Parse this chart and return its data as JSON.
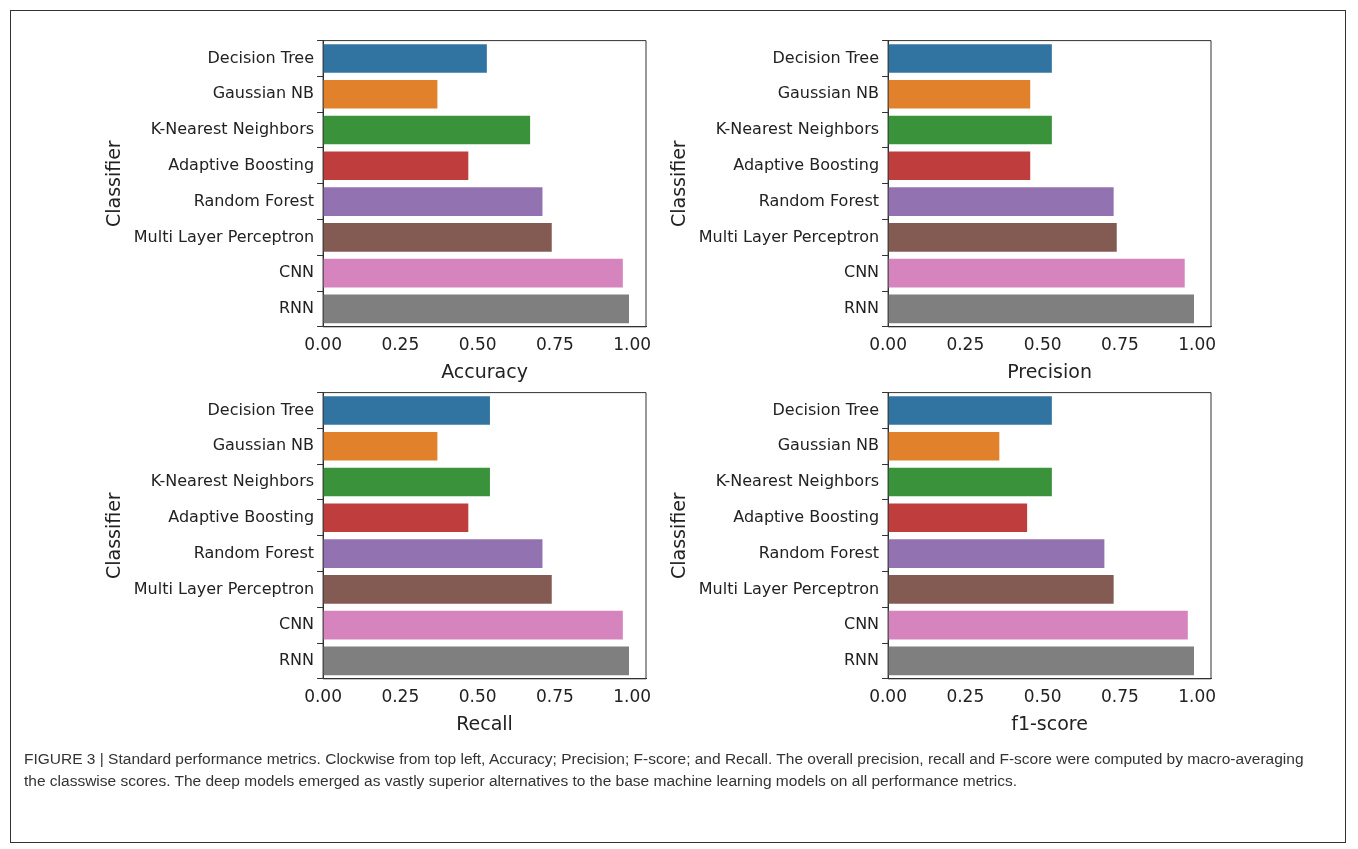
{
  "chart_data": [
    {
      "type": "bar",
      "orientation": "horizontal",
      "xlabel": "Accuracy",
      "ylabel": "Classifier",
      "categories": [
        "Decision Tree",
        "Gaussian NB",
        "K-Nearest Neighbors",
        "Adaptive Boosting",
        "Random Forest",
        "Multi Layer Perceptron",
        "CNN",
        "RNN"
      ],
      "values": [
        0.53,
        0.37,
        0.67,
        0.47,
        0.71,
        0.74,
        0.97,
        0.99
      ],
      "colors": [
        "#3274a1",
        "#e1812c",
        "#3a923a",
        "#c03d3e",
        "#9372b2",
        "#845b53",
        "#d684bd",
        "#7f7f7f"
      ],
      "xlim": [
        0,
        1.045
      ],
      "xticks": [
        {
          "value": 0,
          "label": "0.00"
        },
        {
          "value": 0.25,
          "label": "0.25"
        },
        {
          "value": 0.5,
          "label": "0.50"
        },
        {
          "value": 0.75,
          "label": "0.75"
        },
        {
          "value": 1,
          "label": "1.00"
        }
      ],
      "grid": false,
      "annotations": [
        "FIGURE 3 | Standard performance metrics. Clockwise from top left, Accuracy; Precision; F-score; and Recall. The overall precision, recall and F-score were computed by macro-averaging the classwise scores. The deep models emerged as vastly superior alternatives to the base machine learning models on all performance metrics."
      ]
    },
    {
      "type": "bar",
      "orientation": "horizontal",
      "xlabel": "Precision",
      "ylabel": "Classifier",
      "categories": [
        "Decision Tree",
        "Gaussian NB",
        "K-Nearest Neighbors",
        "Adaptive Boosting",
        "Random Forest",
        "Multi Layer Perceptron",
        "CNN",
        "RNN"
      ],
      "values": [
        0.53,
        0.46,
        0.53,
        0.46,
        0.73,
        0.74,
        0.96,
        0.99
      ],
      "colors": [
        "#3274a1",
        "#e1812c",
        "#3a923a",
        "#c03d3e",
        "#9372b2",
        "#845b53",
        "#d684bd",
        "#7f7f7f"
      ],
      "xlim": [
        0,
        1.045
      ],
      "xticks": [
        {
          "value": 0,
          "label": "0.00"
        },
        {
          "value": 0.25,
          "label": "0.25"
        },
        {
          "value": 0.5,
          "label": "0.50"
        },
        {
          "value": 0.75,
          "label": "0.75"
        },
        {
          "value": 1,
          "label": "1.00"
        }
      ],
      "grid": false
    },
    {
      "type": "bar",
      "orientation": "horizontal",
      "xlabel": "Recall",
      "ylabel": "Classifier",
      "categories": [
        "Decision Tree",
        "Gaussian NB",
        "K-Nearest Neighbors",
        "Adaptive Boosting",
        "Random Forest",
        "Multi Layer Perceptron",
        "CNN",
        "RNN"
      ],
      "values": [
        0.54,
        0.37,
        0.54,
        0.47,
        0.71,
        0.74,
        0.97,
        0.99
      ],
      "colors": [
        "#3274a1",
        "#e1812c",
        "#3a923a",
        "#c03d3e",
        "#9372b2",
        "#845b53",
        "#d684bd",
        "#7f7f7f"
      ],
      "xlim": [
        0,
        1.045
      ],
      "xticks": [
        {
          "value": 0,
          "label": "0.00"
        },
        {
          "value": 0.25,
          "label": "0.25"
        },
        {
          "value": 0.5,
          "label": "0.50"
        },
        {
          "value": 0.75,
          "label": "0.75"
        },
        {
          "value": 1,
          "label": "1.00"
        }
      ],
      "grid": false
    },
    {
      "type": "bar",
      "orientation": "horizontal",
      "xlabel": "f1-score",
      "ylabel": "Classifier",
      "categories": [
        "Decision Tree",
        "Gaussian NB",
        "K-Nearest Neighbors",
        "Adaptive Boosting",
        "Random Forest",
        "Multi Layer Perceptron",
        "CNN",
        "RNN"
      ],
      "values": [
        0.53,
        0.36,
        0.53,
        0.45,
        0.7,
        0.73,
        0.97,
        0.99
      ],
      "colors": [
        "#3274a1",
        "#e1812c",
        "#3a923a",
        "#c03d3e",
        "#9372b2",
        "#845b53",
        "#d684bd",
        "#7f7f7f"
      ],
      "xlim": [
        0,
        1.045
      ],
      "xticks": [
        {
          "value": 0,
          "label": "0.00"
        },
        {
          "value": 0.25,
          "label": "0.25"
        },
        {
          "value": 0.5,
          "label": "0.50"
        },
        {
          "value": 0.75,
          "label": "0.75"
        },
        {
          "value": 1,
          "label": "1.00"
        }
      ],
      "grid": false
    }
  ]
}
